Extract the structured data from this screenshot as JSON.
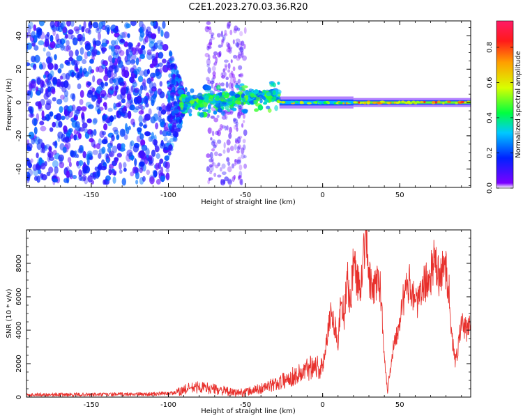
{
  "figure_title": "C2E1.2023.270.03.36.R20",
  "chart_data": [
    {
      "type": "heatmap",
      "title": "",
      "xlabel": "Height of straight line (km)",
      "ylabel": "Frequency (Hz)",
      "xlim": [
        -192,
        96
      ],
      "ylim": [
        -51,
        49
      ],
      "xticks": [
        -150,
        -100,
        -50,
        0,
        50
      ],
      "yticks": [
        -40,
        -20,
        0,
        20,
        40
      ],
      "colorbar": {
        "label": "Normalized spectral amplitude",
        "range": [
          0,
          0.95
        ],
        "ticks": [
          0.0,
          0.2,
          0.4,
          0.6,
          0.8
        ],
        "tick_labels": [
          "0.0",
          "0.2",
          "0.4",
          "0.6",
          "0.8"
        ],
        "colormap": [
          "#ffffff",
          "#7b00ff",
          "#0022ff",
          "#00c8ff",
          "#00ff40",
          "#d8ff00",
          "#ffa000",
          "#ff1a1a",
          "#ff1a66"
        ]
      },
      "regions": [
        {
          "x_range": [
            -192,
            -100
          ],
          "freq_spread": 48,
          "amplitude": [
            0.05,
            0.25
          ],
          "note": "broadband noise"
        },
        {
          "x_range": [
            -100,
            -90
          ],
          "freq_spread": 25,
          "amplitude": [
            0.05,
            0.3
          ],
          "note": "narrowing"
        },
        {
          "x_range": [
            -92,
            -28
          ],
          "freq_center": [
            0,
            4
          ],
          "freq_spread": 6,
          "amplitude": [
            0.2,
            0.5
          ],
          "note": "noisy blobs near 0 Hz"
        },
        {
          "x_range": [
            -75,
            -50
          ],
          "freq_spread": 48,
          "amplitude": [
            0.02,
            0.12
          ],
          "note": "vertical faint band"
        },
        {
          "x_range": [
            -28,
            20
          ],
          "freq_center": 0,
          "freq_spread": 2,
          "amplitude": [
            0.3,
            0.8
          ],
          "note": "narrow line with red dots"
        },
        {
          "x_range": [
            20,
            96
          ],
          "freq_center": 0,
          "freq_spread": 1.5,
          "amplitude": [
            0.5,
            0.85
          ],
          "note": "steady tone"
        }
      ]
    },
    {
      "type": "line",
      "title": "",
      "xlabel": "Height of straight line (km)",
      "ylabel": "SNR (10 * v/v)",
      "xlim": [
        -192,
        96
      ],
      "ylim": [
        0,
        10000
      ],
      "xticks": [
        -150,
        -100,
        -50,
        0,
        50
      ],
      "yticks": [
        0,
        2000,
        4000,
        6000,
        8000
      ],
      "series": [
        {
          "name": "SNR",
          "color": "#e8302c",
          "x": [
            -192,
            -150,
            -110,
            -95,
            -88,
            -80,
            -72,
            -65,
            -58,
            -50,
            -40,
            -30,
            -20,
            -12,
            -6,
            0,
            2,
            5,
            8,
            10,
            12,
            14,
            16,
            18,
            20,
            22,
            24,
            26,
            28,
            30,
            32,
            34,
            36,
            38,
            40,
            42,
            44,
            46,
            48,
            50,
            52,
            54,
            56,
            58,
            60,
            62,
            64,
            66,
            68,
            70,
            72,
            74,
            76,
            78,
            80,
            82,
            84,
            86,
            88,
            90,
            92,
            94,
            96
          ],
          "y": [
            150,
            150,
            180,
            250,
            500,
            600,
            500,
            400,
            250,
            300,
            500,
            800,
            1200,
            1500,
            2000,
            1600,
            3200,
            5000,
            4300,
            3200,
            6000,
            4800,
            7000,
            5600,
            8300,
            7200,
            6400,
            8200,
            9800,
            7300,
            6200,
            6600,
            7200,
            6000,
            2600,
            300,
            1800,
            3200,
            3800,
            4800,
            5700,
            6300,
            6800,
            6500,
            5900,
            5600,
            6200,
            6900,
            6800,
            7300,
            8100,
            7600,
            7000,
            7600,
            7800,
            6300,
            3400,
            2000,
            3200,
            4400,
            4100,
            3900,
            4900
          ]
        }
      ]
    }
  ]
}
